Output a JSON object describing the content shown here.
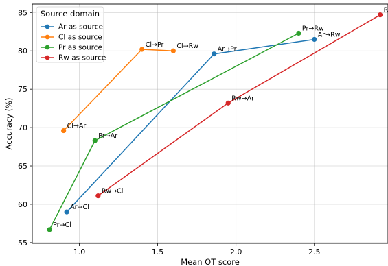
{
  "chart_data": {
    "type": "line",
    "title": "",
    "xlabel": "Mean OT score",
    "ylabel": "Accuracy (%)",
    "xlim": [
      0.7,
      2.97
    ],
    "ylim": [
      54.9,
      86.1
    ],
    "xticks": [
      "1.0",
      "1.5",
      "2.0",
      "2.5"
    ],
    "yticks": [
      "55",
      "60",
      "65",
      "70",
      "75",
      "80",
      "85"
    ],
    "grid": true,
    "legend": {
      "title": "Source domain",
      "placement": "top-left"
    },
    "series": [
      {
        "name": "Ar as source",
        "color": "#1f77b4",
        "points": [
          {
            "x": 0.92,
            "y": 59.0,
            "label": "Ar→Cl"
          },
          {
            "x": 1.86,
            "y": 79.6,
            "label": "Ar→Pr"
          },
          {
            "x": 2.5,
            "y": 81.5,
            "label": "Ar→Rw"
          }
        ]
      },
      {
        "name": "Cl as source",
        "color": "#ff7f0e",
        "points": [
          {
            "x": 0.9,
            "y": 69.6,
            "label": "Cl→Ar"
          },
          {
            "x": 1.4,
            "y": 80.2,
            "label": "Cl→Pr"
          },
          {
            "x": 1.6,
            "y": 80.0,
            "label": "Cl→Rw"
          }
        ]
      },
      {
        "name": "Pr as source",
        "color": "#2ca02c",
        "points": [
          {
            "x": 0.81,
            "y": 56.7,
            "label": "Pr→Cl"
          },
          {
            "x": 1.1,
            "y": 68.3,
            "label": "Pr→Ar"
          },
          {
            "x": 2.4,
            "y": 82.3,
            "label": "Pr→Rw"
          }
        ]
      },
      {
        "name": "Rw as source",
        "color": "#d62728",
        "points": [
          {
            "x": 1.12,
            "y": 61.1,
            "label": "Rw→Cl"
          },
          {
            "x": 1.95,
            "y": 73.2,
            "label": "Rw→Ar"
          },
          {
            "x": 2.92,
            "y": 84.7,
            "label": "Rw→Pr"
          }
        ]
      }
    ]
  }
}
